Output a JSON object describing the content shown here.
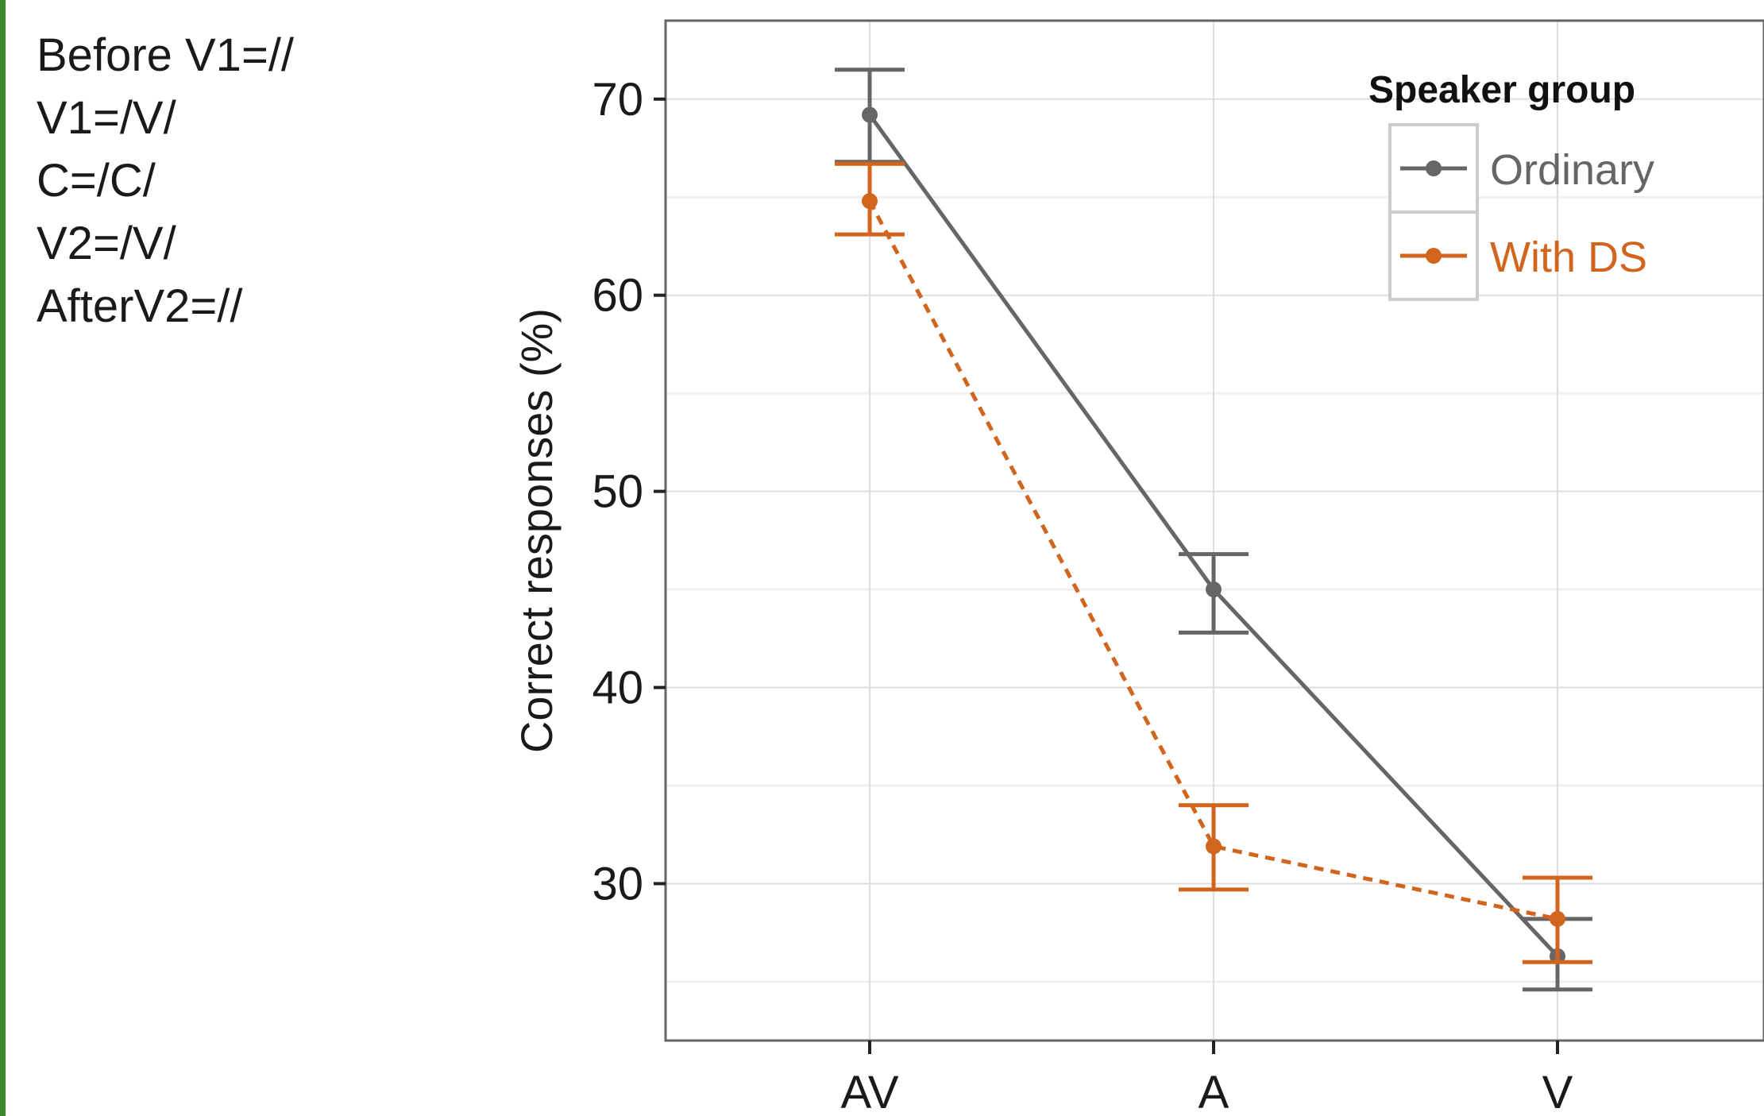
{
  "notes": [
    "Before V1=//",
    "V1=/V/",
    "C=/C/",
    "V2=/V/",
    "AfterV2=//"
  ],
  "colors": {
    "ordinary": "#666666",
    "with_ds": "#d2651e",
    "grid_major": "#dddddd",
    "grid_minor": "#efefef",
    "frame": "#666666",
    "left_border": "#3f8a2f"
  },
  "chart_data": {
    "type": "line",
    "categories": [
      "AV",
      "A",
      "V"
    ],
    "xlabel": "",
    "ylabel": "Correct responses (%)",
    "ylim": [
      22,
      74
    ],
    "yticks": [
      30,
      40,
      50,
      60,
      70
    ],
    "grid": true,
    "legend": {
      "title": "Speaker group",
      "position": "top-right"
    },
    "series": [
      {
        "name": "Ordinary",
        "color": "#666666",
        "line_style": "solid",
        "values": [
          69.2,
          45.0,
          26.3
        ],
        "error_low": [
          66.8,
          42.8,
          24.6
        ],
        "error_high": [
          71.5,
          46.8,
          28.2
        ]
      },
      {
        "name": "With DS",
        "color": "#d2651e",
        "line_style": "dashed",
        "values": [
          64.8,
          31.9,
          28.2
        ],
        "error_low": [
          63.1,
          29.7,
          26.0
        ],
        "error_high": [
          66.7,
          34.0,
          30.3
        ]
      }
    ]
  }
}
